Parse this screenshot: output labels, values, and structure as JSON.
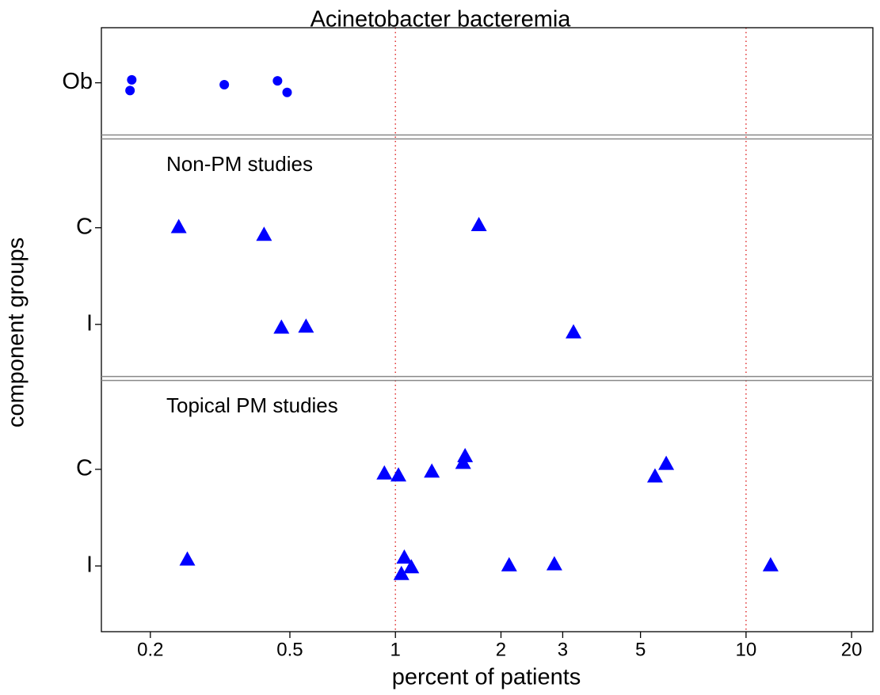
{
  "chart_data": {
    "type": "scatter",
    "title": "Acinetobacter bacteremia",
    "xlabel": "percent of patients",
    "ylabel": "component groups",
    "xscale": "log",
    "xlim": [
      0.145,
      23
    ],
    "xticks": [
      0.2,
      0.5,
      1,
      2,
      3,
      5,
      10,
      20
    ],
    "ylim": [
      0.32,
      6.57
    ],
    "yticks": [
      {
        "value": 6,
        "label": "Ob"
      },
      {
        "value": 4.5,
        "label": "C"
      },
      {
        "value": 3.5,
        "label": "I"
      },
      {
        "value": 2,
        "label": "C"
      },
      {
        "value": 1,
        "label": "I"
      }
    ],
    "ref_lines": [
      1,
      10
    ],
    "ref_line_color": "#e03030",
    "panel_breaks": [
      5.44,
      2.94
    ],
    "annotations": [
      "Non-PM studies",
      "Topical PM studies"
    ],
    "series": [
      {
        "marker": "circle",
        "color": "#0000ff",
        "x": [
          0.177,
          0.175,
          0.325,
          0.461,
          0.491
        ],
        "y": [
          6.03,
          5.92,
          5.98,
          6.02,
          5.9
        ]
      },
      {
        "marker": "triangle",
        "color": "#0000ff",
        "x": [
          0.241,
          0.422,
          1.73
        ],
        "y": [
          4.51,
          4.43,
          4.53
        ]
      },
      {
        "marker": "triangle",
        "color": "#0000ff",
        "x": [
          0.473,
          0.556,
          3.22
        ],
        "y": [
          3.47,
          3.48,
          3.42
        ]
      },
      {
        "marker": "triangle",
        "color": "#0000ff",
        "x": [
          0.93,
          1.02,
          1.27,
          1.56,
          1.58,
          5.5,
          5.92
        ],
        "y": [
          1.96,
          1.94,
          1.98,
          2.07,
          2.14,
          1.93,
          2.06
        ]
      },
      {
        "marker": "triangle",
        "color": "#0000ff",
        "x": [
          0.255,
          1.04,
          1.06,
          1.11,
          2.11,
          2.84,
          11.75
        ],
        "y": [
          1.07,
          0.92,
          1.09,
          0.99,
          1.01,
          1.02,
          1.01
        ]
      }
    ]
  }
}
